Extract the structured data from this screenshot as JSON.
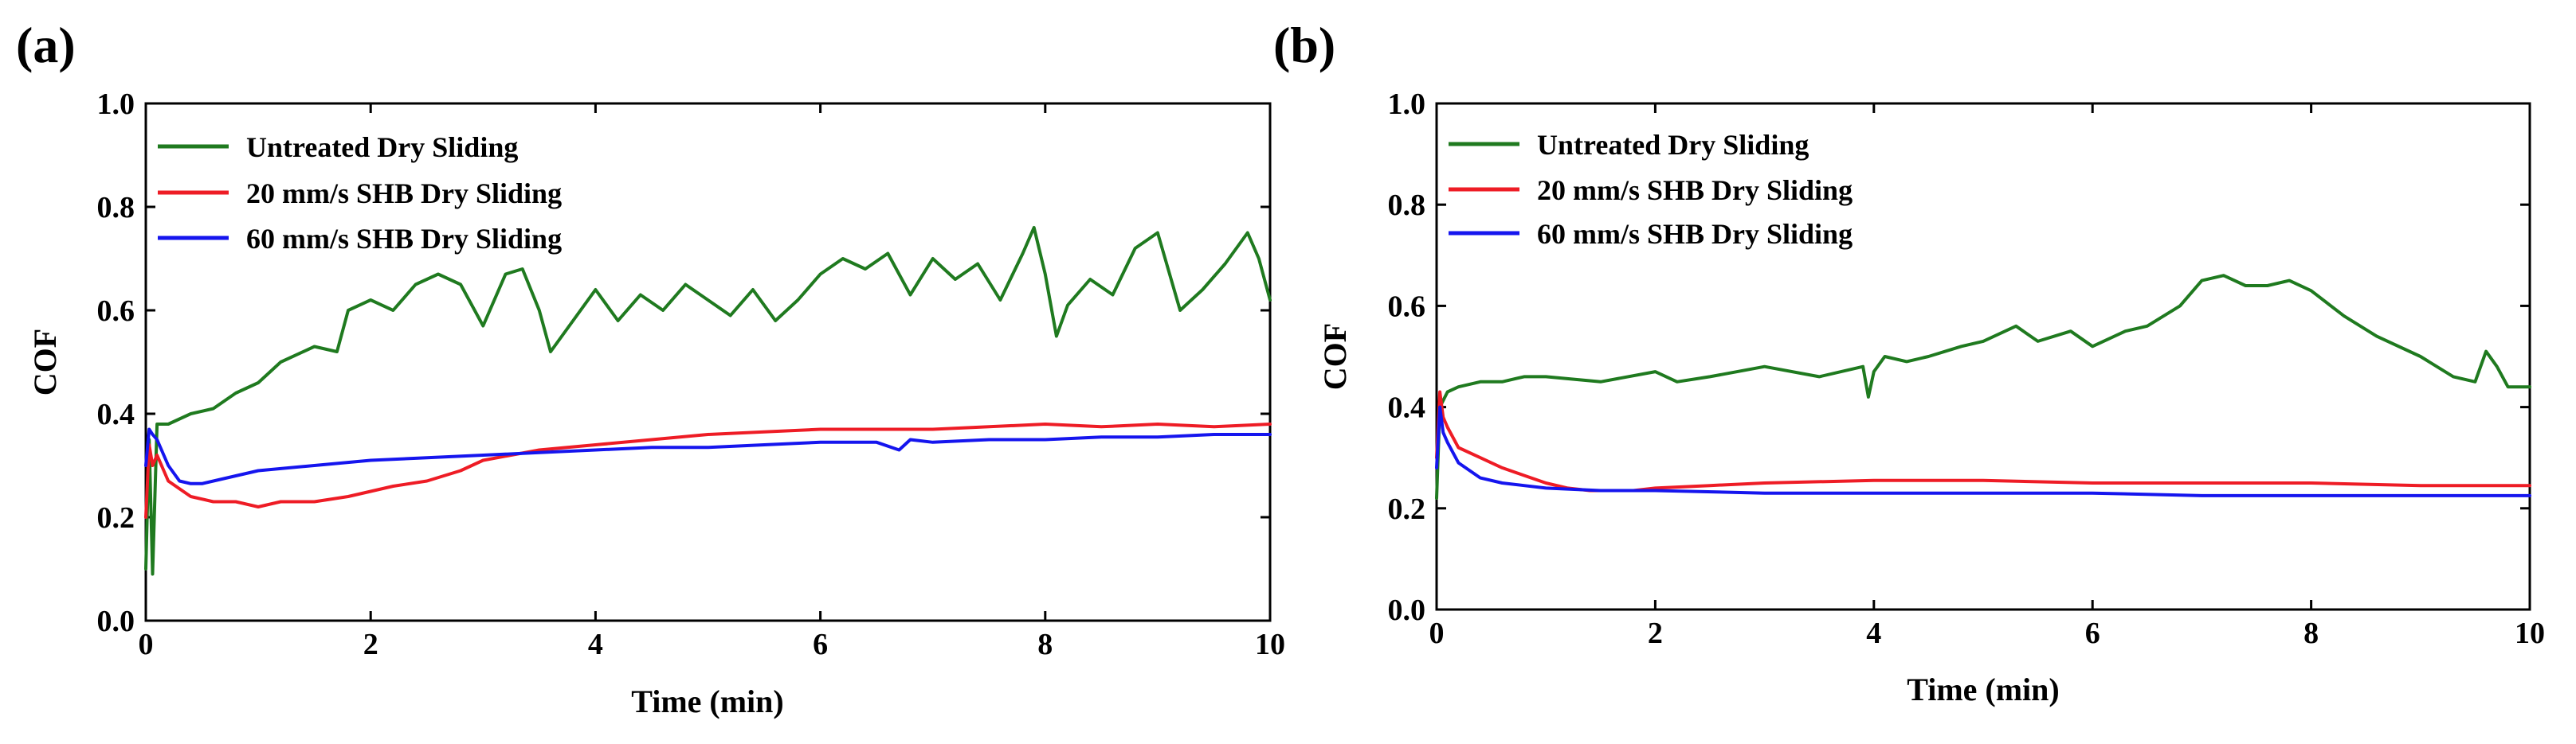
{
  "chart_data": [
    {
      "panel_label": "(a)",
      "type": "line",
      "xlabel": "Time (min)",
      "ylabel": "COF",
      "xlim": [
        0,
        10
      ],
      "ylim": [
        0.0,
        1.0
      ],
      "xticks": [
        0,
        2,
        4,
        6,
        8,
        10
      ],
      "xtick_labels": [
        "0",
        "2",
        "4",
        "6",
        "8",
        "10"
      ],
      "yticks": [
        0.0,
        0.2,
        0.4,
        0.6,
        0.8,
        1.0
      ],
      "ytick_labels": [
        "0.0",
        "0.2",
        "0.4",
        "0.6",
        "0.8",
        "1.0"
      ],
      "legend_position": "top-left",
      "series": [
        {
          "name": "Untreated Dry Sliding",
          "color": "#1f7a1f",
          "x": [
            0.0,
            0.03,
            0.06,
            0.1,
            0.2,
            0.4,
            0.6,
            0.8,
            1.0,
            1.2,
            1.5,
            1.7,
            1.8,
            2.0,
            2.2,
            2.4,
            2.6,
            2.8,
            3.0,
            3.2,
            3.35,
            3.5,
            3.6,
            3.8,
            4.0,
            4.2,
            4.4,
            4.6,
            4.8,
            5.0,
            5.2,
            5.4,
            5.6,
            5.8,
            6.0,
            6.2,
            6.4,
            6.6,
            6.8,
            7.0,
            7.2,
            7.4,
            7.6,
            7.8,
            7.9,
            8.0,
            8.1,
            8.2,
            8.4,
            8.6,
            8.8,
            9.0,
            9.2,
            9.4,
            9.6,
            9.8,
            9.9,
            10.0
          ],
          "y": [
            0.1,
            0.35,
            0.09,
            0.38,
            0.38,
            0.4,
            0.41,
            0.44,
            0.46,
            0.5,
            0.53,
            0.52,
            0.6,
            0.62,
            0.6,
            0.65,
            0.67,
            0.65,
            0.57,
            0.67,
            0.68,
            0.6,
            0.52,
            0.58,
            0.64,
            0.58,
            0.63,
            0.6,
            0.65,
            0.62,
            0.59,
            0.64,
            0.58,
            0.62,
            0.67,
            0.7,
            0.68,
            0.71,
            0.63,
            0.7,
            0.66,
            0.69,
            0.62,
            0.71,
            0.76,
            0.67,
            0.55,
            0.61,
            0.66,
            0.63,
            0.72,
            0.75,
            0.6,
            0.64,
            0.69,
            0.75,
            0.7,
            0.62
          ]
        },
        {
          "name": "20 mm/s SHB Dry Sliding",
          "color": "#ee1c25",
          "x": [
            0.0,
            0.03,
            0.06,
            0.1,
            0.2,
            0.4,
            0.6,
            0.8,
            1.0,
            1.2,
            1.5,
            1.8,
            2.0,
            2.2,
            2.5,
            2.8,
            3.0,
            3.5,
            4.0,
            4.5,
            5.0,
            5.5,
            6.0,
            6.5,
            7.0,
            7.5,
            8.0,
            8.5,
            9.0,
            9.5,
            10.0
          ],
          "y": [
            0.2,
            0.34,
            0.3,
            0.32,
            0.27,
            0.24,
            0.23,
            0.23,
            0.22,
            0.23,
            0.23,
            0.24,
            0.25,
            0.26,
            0.27,
            0.29,
            0.31,
            0.33,
            0.34,
            0.35,
            0.36,
            0.365,
            0.37,
            0.37,
            0.37,
            0.375,
            0.38,
            0.375,
            0.38,
            0.375,
            0.38
          ]
        },
        {
          "name": "60 mm/s SHB Dry Sliding",
          "color": "#1515ee",
          "x": [
            0.0,
            0.03,
            0.06,
            0.1,
            0.2,
            0.3,
            0.4,
            0.5,
            0.8,
            1.0,
            1.5,
            2.0,
            2.5,
            3.0,
            3.5,
            4.0,
            4.5,
            5.0,
            5.5,
            6.0,
            6.5,
            6.7,
            6.8,
            7.0,
            7.5,
            8.0,
            8.5,
            9.0,
            9.5,
            10.0
          ],
          "y": [
            0.3,
            0.37,
            0.36,
            0.35,
            0.3,
            0.27,
            0.265,
            0.265,
            0.28,
            0.29,
            0.3,
            0.31,
            0.315,
            0.32,
            0.325,
            0.33,
            0.335,
            0.335,
            0.34,
            0.345,
            0.345,
            0.33,
            0.35,
            0.345,
            0.35,
            0.35,
            0.355,
            0.355,
            0.36,
            0.36
          ]
        }
      ]
    },
    {
      "panel_label": "(b)",
      "type": "line",
      "xlabel": "Time (min)",
      "ylabel": "COF",
      "xlim": [
        0,
        10
      ],
      "ylim": [
        0.0,
        1.0
      ],
      "xticks": [
        0,
        2,
        4,
        6,
        8,
        10
      ],
      "xtick_labels": [
        "0",
        "2",
        "4",
        "6",
        "8",
        "10"
      ],
      "yticks": [
        0.0,
        0.2,
        0.4,
        0.6,
        0.8,
        1.0
      ],
      "ytick_labels": [
        "0.0",
        "0.2",
        "0.4",
        "0.6",
        "0.8",
        "1.0"
      ],
      "legend_position": "top-left",
      "series": [
        {
          "name": "Untreated Dry Sliding",
          "color": "#1f7a1f",
          "x": [
            0.0,
            0.03,
            0.1,
            0.2,
            0.4,
            0.6,
            0.8,
            1.0,
            1.5,
            2.0,
            2.2,
            2.5,
            3.0,
            3.5,
            3.9,
            3.95,
            4.0,
            4.1,
            4.3,
            4.5,
            4.8,
            5.0,
            5.3,
            5.5,
            5.8,
            6.0,
            6.3,
            6.5,
            6.8,
            7.0,
            7.2,
            7.4,
            7.6,
            7.8,
            8.0,
            8.3,
            8.6,
            9.0,
            9.3,
            9.5,
            9.6,
            9.7,
            9.8,
            10.0
          ],
          "y": [
            0.22,
            0.4,
            0.43,
            0.44,
            0.45,
            0.45,
            0.46,
            0.46,
            0.45,
            0.47,
            0.45,
            0.46,
            0.48,
            0.46,
            0.48,
            0.42,
            0.47,
            0.5,
            0.49,
            0.5,
            0.52,
            0.53,
            0.56,
            0.53,
            0.55,
            0.52,
            0.55,
            0.56,
            0.6,
            0.65,
            0.66,
            0.64,
            0.64,
            0.65,
            0.63,
            0.58,
            0.54,
            0.5,
            0.46,
            0.45,
            0.51,
            0.48,
            0.44,
            0.44
          ]
        },
        {
          "name": "20 mm/s SHB Dry Sliding",
          "color": "#ee1c25",
          "x": [
            0.0,
            0.03,
            0.06,
            0.1,
            0.2,
            0.4,
            0.6,
            0.8,
            1.0,
            1.2,
            1.4,
            1.6,
            1.8,
            2.0,
            2.5,
            3.0,
            4.0,
            5.0,
            6.0,
            7.0,
            8.0,
            9.0,
            10.0
          ],
          "y": [
            0.3,
            0.43,
            0.38,
            0.36,
            0.32,
            0.3,
            0.28,
            0.265,
            0.25,
            0.24,
            0.235,
            0.235,
            0.235,
            0.24,
            0.245,
            0.25,
            0.255,
            0.255,
            0.25,
            0.25,
            0.25,
            0.245,
            0.245
          ]
        },
        {
          "name": "60 mm/s SHB Dry Sliding",
          "color": "#1515ee",
          "x": [
            0.0,
            0.03,
            0.06,
            0.1,
            0.2,
            0.4,
            0.6,
            0.8,
            1.0,
            1.5,
            2.0,
            3.0,
            4.0,
            5.0,
            6.0,
            7.0,
            8.0,
            9.0,
            10.0
          ],
          "y": [
            0.28,
            0.4,
            0.35,
            0.33,
            0.29,
            0.26,
            0.25,
            0.245,
            0.24,
            0.235,
            0.235,
            0.23,
            0.23,
            0.23,
            0.23,
            0.225,
            0.225,
            0.225,
            0.225
          ]
        }
      ]
    }
  ]
}
